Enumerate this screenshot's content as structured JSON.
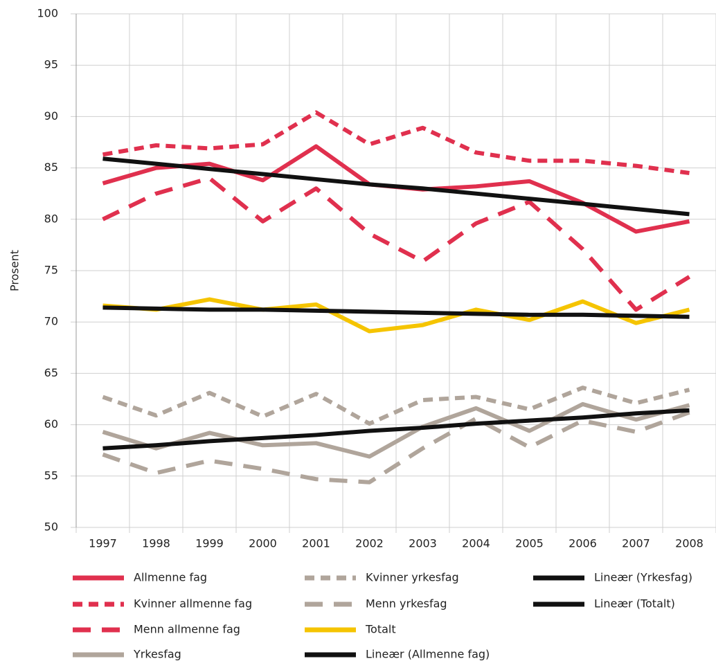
{
  "chart_data": {
    "type": "line",
    "y_label": "Prosent",
    "categories": [
      "1997",
      "1998",
      "1999",
      "2000",
      "2001",
      "2002",
      "2003",
      "2004",
      "2005",
      "2006",
      "2007",
      "2008"
    ],
    "ylim": [
      50,
      100
    ],
    "yticks": [
      50,
      55,
      60,
      65,
      70,
      75,
      80,
      85,
      90,
      95,
      100
    ],
    "grid": true,
    "legend": "bottom",
    "series": [
      {
        "name": "Allmenne fag",
        "color": "#e0304e",
        "dash": "solid",
        "values": [
          83.5,
          85.0,
          85.4,
          83.8,
          87.1,
          83.4,
          82.9,
          83.2,
          83.7,
          81.6,
          78.8,
          79.8
        ]
      },
      {
        "name": "Kvinner allmenne fag",
        "color": "#e0304e",
        "dash": "short",
        "values": [
          86.3,
          87.2,
          86.9,
          87.3,
          90.4,
          87.3,
          88.9,
          86.5,
          85.7,
          85.7,
          85.2,
          84.5
        ]
      },
      {
        "name": "Menn allmenne fag",
        "color": "#e0304e",
        "dash": "long",
        "values": [
          80.0,
          82.5,
          84.0,
          79.8,
          83.0,
          78.6,
          75.9,
          79.6,
          81.7,
          77.1,
          71.2,
          74.4
        ]
      },
      {
        "name": "Yrkesfag",
        "color": "#b0a59b",
        "dash": "solid",
        "values": [
          59.3,
          57.7,
          59.2,
          58.0,
          58.2,
          56.9,
          59.8,
          61.6,
          59.4,
          62.0,
          60.5,
          61.9
        ]
      },
      {
        "name": "Kvinner yrkesfag",
        "color": "#b0a59b",
        "dash": "short",
        "values": [
          62.7,
          60.9,
          63.1,
          60.8,
          63.0,
          60.1,
          62.4,
          62.7,
          61.5,
          63.6,
          62.1,
          63.4
        ]
      },
      {
        "name": "Menn yrkesfag",
        "color": "#b0a59b",
        "dash": "long",
        "values": [
          57.1,
          55.3,
          56.5,
          55.7,
          54.7,
          54.4,
          57.7,
          60.6,
          57.8,
          60.4,
          59.3,
          61.2
        ]
      },
      {
        "name": "Totalt",
        "color": "#f5c400",
        "dash": "solid",
        "values": [
          71.6,
          71.2,
          72.2,
          71.2,
          71.7,
          69.1,
          69.7,
          71.2,
          70.2,
          72.0,
          69.9,
          71.2
        ]
      },
      {
        "name": "Lineær (Allmenne fag)",
        "color": "#111111",
        "dash": "solid",
        "values": [
          85.9,
          85.4,
          84.9,
          84.4,
          83.9,
          83.4,
          83.0,
          82.5,
          82.0,
          81.5,
          81.0,
          80.5
        ]
      },
      {
        "name": "Lineær (Yrkesfag)",
        "color": "#111111",
        "dash": "solid",
        "values": [
          57.7,
          58.0,
          58.4,
          58.7,
          59.0,
          59.4,
          59.7,
          60.1,
          60.4,
          60.7,
          61.1,
          61.4
        ]
      },
      {
        "name": "Lineær (Totalt)",
        "color": "#111111",
        "dash": "solid",
        "values": [
          71.4,
          71.3,
          71.2,
          71.2,
          71.1,
          71.0,
          70.9,
          70.8,
          70.7,
          70.7,
          70.6,
          70.5
        ]
      }
    ]
  }
}
